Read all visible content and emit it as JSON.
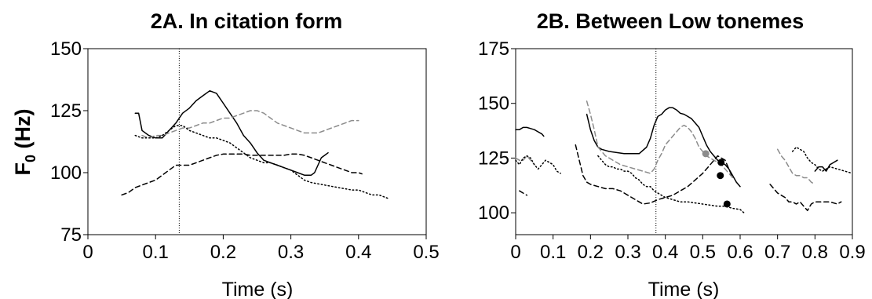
{
  "colors": {
    "black": "#000000",
    "gray": "#8c8c8c"
  },
  "chart_data": [
    {
      "type": "line",
      "title": "2A. In citation form",
      "xlabel": "Time (s)",
      "ylabel": "F",
      "ylabel_sub": "0",
      "ylabel_unit": " (Hz)",
      "xlim": [
        0,
        0.5
      ],
      "ylim": [
        75,
        150
      ],
      "xticks": [
        0,
        0.1,
        0.2,
        0.3,
        0.4,
        0.5
      ],
      "xtick_labels": [
        "0",
        "0.1",
        "0.2",
        "0.3",
        "0.4",
        "0.5"
      ],
      "yticks": [
        75,
        100,
        125,
        150
      ],
      "ytick_labels": [
        "75",
        "100",
        "125",
        "150"
      ],
      "vlines": [
        0.135
      ],
      "series": [
        {
          "style": "solid",
          "color": "#000000",
          "x": [
            0.07,
            0.075,
            0.08,
            0.09,
            0.1,
            0.11,
            0.12,
            0.13,
            0.14,
            0.15,
            0.16,
            0.17,
            0.18,
            0.19,
            0.2,
            0.21,
            0.22,
            0.23,
            0.24,
            0.25,
            0.26,
            0.27,
            0.28,
            0.29,
            0.3,
            0.31,
            0.32,
            0.33,
            0.335,
            0.34,
            0.345,
            0.35,
            0.355
          ],
          "y": [
            124,
            124,
            117,
            115,
            114,
            114,
            117,
            120,
            124,
            126,
            129,
            131,
            133,
            132,
            128,
            124,
            120,
            115,
            112,
            108,
            105,
            104,
            103,
            102,
            101,
            100,
            99,
            99,
            100,
            103,
            106,
            107,
            108
          ]
        },
        {
          "style": "dashed",
          "color": "#8c8c8c",
          "x": [
            0.08,
            0.09,
            0.1,
            0.11,
            0.12,
            0.13,
            0.14,
            0.15,
            0.16,
            0.17,
            0.18,
            0.19,
            0.2,
            0.21,
            0.22,
            0.23,
            0.24,
            0.25,
            0.26,
            0.27,
            0.28,
            0.29,
            0.3,
            0.31,
            0.32,
            0.33,
            0.34,
            0.35,
            0.36,
            0.37,
            0.38,
            0.39,
            0.4
          ],
          "y": [
            115,
            114,
            115,
            115,
            116,
            117,
            118,
            118,
            119,
            120,
            120,
            121,
            122,
            122,
            123,
            124,
            125,
            125,
            124,
            122,
            120,
            119,
            118,
            117,
            116,
            116,
            116,
            117,
            118,
            119,
            120,
            121,
            121
          ]
        },
        {
          "style": "dotted",
          "color": "#000000",
          "x": [
            0.07,
            0.08,
            0.09,
            0.1,
            0.11,
            0.12,
            0.13,
            0.14,
            0.15,
            0.16,
            0.17,
            0.18,
            0.19,
            0.2,
            0.21,
            0.22,
            0.23,
            0.24,
            0.25,
            0.26,
            0.27,
            0.28,
            0.29,
            0.3,
            0.31,
            0.32,
            0.33,
            0.34,
            0.35,
            0.36,
            0.37,
            0.38,
            0.39,
            0.4,
            0.41,
            0.42,
            0.43,
            0.44,
            0.445
          ],
          "y": [
            115,
            114,
            114,
            114,
            115,
            117,
            119,
            119,
            117,
            116,
            115,
            114,
            114,
            113,
            112,
            110,
            108,
            106,
            105,
            104,
            104,
            103,
            102,
            101,
            99,
            97,
            96,
            95.5,
            95,
            94.5,
            94,
            93.5,
            93,
            93,
            92,
            91,
            91,
            90,
            89.5
          ]
        },
        {
          "style": "dashed",
          "color": "#000000",
          "x": [
            0.05,
            0.06,
            0.07,
            0.08,
            0.09,
            0.1,
            0.11,
            0.12,
            0.13,
            0.14,
            0.15,
            0.16,
            0.17,
            0.18,
            0.19,
            0.2,
            0.21,
            0.22,
            0.23,
            0.24,
            0.25,
            0.26,
            0.27,
            0.28,
            0.29,
            0.3,
            0.31,
            0.32,
            0.33,
            0.34,
            0.35,
            0.36,
            0.37,
            0.38,
            0.39,
            0.4,
            0.405
          ],
          "y": [
            91,
            92,
            94,
            95,
            96,
            97,
            99,
            101,
            103,
            103,
            103,
            104,
            105,
            106,
            107,
            107.5,
            107.5,
            107.5,
            107.5,
            107,
            107,
            107,
            107,
            107,
            107,
            107.5,
            107.5,
            107,
            106,
            105,
            104,
            103,
            102,
            101,
            100,
            100,
            99.5
          ]
        }
      ]
    },
    {
      "type": "line",
      "title": "2B. Between Low tonemes",
      "xlabel": "Time (s)",
      "xlim": [
        0,
        0.9
      ],
      "ylim": [
        90,
        175
      ],
      "xticks": [
        0,
        0.1,
        0.2,
        0.3,
        0.4,
        0.5,
        0.6,
        0.7,
        0.8,
        0.9
      ],
      "xtick_labels": [
        "0",
        "0.1",
        "0.2",
        "0.3",
        "0.4",
        "0.5",
        "0.6",
        "0.7",
        "0.8",
        "0.9"
      ],
      "yticks": [
        100,
        125,
        150,
        175
      ],
      "ytick_labels": [
        "100",
        "125",
        "150",
        "175"
      ],
      "vlines": [
        0.375
      ],
      "series": [
        {
          "style": "solid",
          "color": "#000000",
          "segments": [
            {
              "x": [
                0.0,
                0.01,
                0.02,
                0.03,
                0.04,
                0.05,
                0.06,
                0.07,
                0.075
              ],
              "y": [
                138,
                138,
                139,
                139,
                138.5,
                138,
                137,
                136,
                135
              ]
            },
            {
              "x": [
                0.19,
                0.2,
                0.21,
                0.22,
                0.23,
                0.25,
                0.27,
                0.29,
                0.31,
                0.33,
                0.35,
                0.36,
                0.37,
                0.38,
                0.39,
                0.4,
                0.41,
                0.42,
                0.43,
                0.44,
                0.45,
                0.46,
                0.47,
                0.48,
                0.49,
                0.5,
                0.51,
                0.52,
                0.53,
                0.54,
                0.55,
                0.56,
                0.57,
                0.58,
                0.59,
                0.6
              ],
              "y": [
                145,
                138,
                133,
                130,
                129,
                128,
                127.5,
                127,
                127,
                127,
                130,
                134,
                140,
                144,
                145,
                147,
                148,
                148,
                147,
                145.5,
                145,
                144,
                143,
                141,
                139,
                135,
                131,
                128,
                126,
                124,
                123,
                122,
                120,
                117,
                114,
                112
              ]
            },
            {
              "x": [
                0.8,
                0.81,
                0.82,
                0.83,
                0.84,
                0.85,
                0.86
              ],
              "y": [
                119,
                121,
                121,
                119,
                122,
                123,
                124
              ]
            }
          ]
        },
        {
          "style": "dashed",
          "color": "#8c8c8c",
          "segments": [
            {
              "x": [
                0.0,
                0.01,
                0.02,
                0.03,
                0.04,
                0.05
              ],
              "y": [
                125,
                124,
                124,
                126,
                124,
                122
              ]
            },
            {
              "x": [
                0.19,
                0.2,
                0.21,
                0.22,
                0.24,
                0.26,
                0.28,
                0.3,
                0.32,
                0.34,
                0.36,
                0.37,
                0.38,
                0.39,
                0.4,
                0.41,
                0.42,
                0.43,
                0.44,
                0.45,
                0.46,
                0.47,
                0.48,
                0.49,
                0.5,
                0.51,
                0.52,
                0.53,
                0.54,
                0.55,
                0.56,
                0.57,
                0.58
              ],
              "y": [
                151,
                145,
                138,
                130,
                126,
                124,
                122,
                121,
                120,
                119,
                118,
                120,
                124,
                127,
                131,
                133,
                135,
                137,
                139,
                140,
                139,
                137,
                134,
                130,
                128,
                126,
                125,
                124,
                123,
                122,
                120,
                118,
                116
              ]
            },
            {
              "x": [
                0.7,
                0.71,
                0.72,
                0.73,
                0.74,
                0.75,
                0.76,
                0.77,
                0.78,
                0.79,
                0.8
              ],
              "y": [
                129,
                126,
                124,
                121,
                118,
                117,
                117,
                116,
                116,
                114,
                113
              ]
            }
          ]
        },
        {
          "style": "dotted",
          "color": "#000000",
          "segments": [
            {
              "x": [
                0.0,
                0.01,
                0.02,
                0.03,
                0.04,
                0.05,
                0.06,
                0.07,
                0.08,
                0.09,
                0.1,
                0.11,
                0.12
              ],
              "y": [
                124,
                122,
                125,
                126,
                125,
                122,
                120,
                122,
                124,
                123,
                122,
                119,
                118
              ]
            },
            {
              "x": [
                0.22,
                0.23,
                0.24,
                0.25,
                0.26,
                0.27,
                0.28,
                0.29,
                0.3,
                0.31,
                0.32,
                0.33,
                0.34,
                0.35,
                0.36,
                0.37,
                0.38,
                0.39,
                0.4,
                0.42,
                0.44,
                0.46,
                0.48,
                0.5,
                0.52,
                0.54,
                0.56,
                0.58,
                0.6,
                0.61
              ],
              "y": [
                126,
                124,
                122,
                121,
                121,
                120,
                120,
                119,
                119,
                118,
                116,
                115,
                113,
                112,
                112,
                110,
                109,
                108,
                107,
                106,
                105,
                105,
                104.5,
                104,
                103.5,
                103,
                103,
                102,
                101.5,
                100
              ]
            },
            {
              "x": [
                0.74,
                0.75,
                0.76,
                0.77,
                0.78,
                0.79,
                0.8,
                0.81,
                0.82,
                0.83,
                0.84,
                0.86,
                0.88,
                0.9
              ],
              "y": [
                128,
                130,
                129,
                128,
                125,
                123,
                122,
                120,
                119,
                120,
                121,
                120,
                119,
                118
              ]
            }
          ]
        },
        {
          "style": "dashed",
          "color": "#000000",
          "segments": [
            {
              "x": [
                0.01,
                0.02,
                0.03
              ],
              "y": [
                110,
                109,
                108
              ]
            },
            {
              "x": [
                0.16,
                0.17,
                0.18,
                0.19,
                0.2,
                0.22,
                0.24,
                0.26,
                0.28,
                0.3,
                0.32,
                0.34,
                0.36,
                0.38,
                0.4,
                0.42,
                0.44,
                0.46,
                0.48,
                0.5,
                0.52,
                0.54,
                0.56,
                0.57,
                0.58
              ],
              "y": [
                131,
                124,
                117,
                114,
                113,
                112,
                111,
                111,
                110,
                108,
                106,
                104,
                104.5,
                106,
                107,
                108,
                110,
                112,
                115,
                118,
                122,
                126,
                124,
                120,
                116
              ]
            },
            {
              "x": [
                0.68,
                0.69,
                0.7,
                0.71,
                0.72,
                0.73,
                0.74,
                0.75,
                0.76,
                0.77,
                0.78,
                0.79,
                0.8,
                0.82,
                0.84,
                0.86,
                0.87
              ],
              "y": [
                113,
                111,
                109,
                108,
                107,
                105,
                105,
                104,
                105,
                103,
                101,
                104,
                105,
                105,
                105,
                104,
                105
              ]
            }
          ]
        }
      ],
      "points": [
        {
          "x": 0.508,
          "y": 127,
          "color": "#8c8c8c"
        },
        {
          "x": 0.549,
          "y": 123,
          "color": "#000000"
        },
        {
          "x": 0.547,
          "y": 117,
          "color": "#000000"
        },
        {
          "x": 0.565,
          "y": 104,
          "color": "#000000"
        }
      ]
    }
  ]
}
